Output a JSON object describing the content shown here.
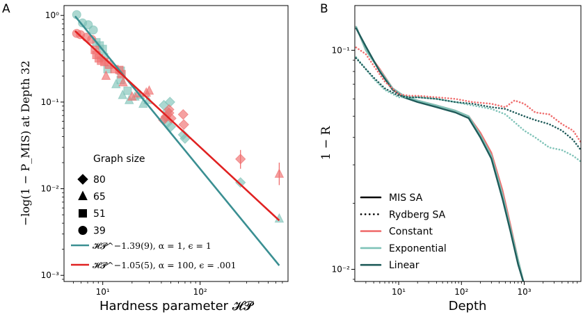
{
  "chart_data": [
    {
      "panel_label": "A",
      "type": "scatter",
      "xscale": "log",
      "yscale": "log",
      "xlim": [
        4,
        800
      ],
      "ylim": [
        0.00085,
        1.3
      ],
      "xlabel": "Hardness parameter 𝓗𝓟",
      "ylabel": "−log(1 − P_MIS) at Depth 32",
      "xticks": [
        {
          "v": 10,
          "label": "10¹"
        },
        {
          "v": 100,
          "label": "10²"
        }
      ],
      "yticks": [
        {
          "v": 1,
          "label": "10⁰"
        },
        {
          "v": 0.1,
          "label": "10⁻¹"
        },
        {
          "v": 0.01,
          "label": "10⁻²"
        },
        {
          "v": 0.001,
          "label": "10⁻³"
        }
      ],
      "legend_title": "Graph size",
      "size_legend": [
        {
          "marker": "diamond",
          "label": "80"
        },
        {
          "marker": "triangle",
          "label": "65"
        },
        {
          "marker": "square",
          "label": "51"
        },
        {
          "marker": "circle",
          "label": "39"
        }
      ],
      "fit_lines": [
        {
          "name": "𝓗𝓟^−1.39(9), α = 1, ϵ = 1",
          "color": "#3a8f92",
          "x": [
            5.2,
            650
          ],
          "y": [
            0.98,
            0.0013
          ]
        },
        {
          "name": "𝓗𝓟^−1.05(5), α = 100, ϵ = .001",
          "color": "#e02121",
          "x": [
            5.2,
            650
          ],
          "y": [
            0.66,
            0.0043
          ]
        }
      ],
      "colors": {
        "teal": "#7fc3b8",
        "red": "#ef6e6e"
      },
      "points": [
        {
          "s": "teal",
          "m": "circle",
          "x": 5.4,
          "y": 1.02
        },
        {
          "s": "teal",
          "m": "circle",
          "x": 6.2,
          "y": 0.82
        },
        {
          "s": "teal",
          "m": "circle",
          "x": 7.1,
          "y": 0.78
        },
        {
          "s": "teal",
          "m": "circle",
          "x": 8.0,
          "y": 0.68
        },
        {
          "s": "teal",
          "m": "square",
          "x": 8.6,
          "y": 0.49
        },
        {
          "s": "teal",
          "m": "square",
          "x": 9.3,
          "y": 0.45
        },
        {
          "s": "teal",
          "m": "square",
          "x": 10.0,
          "y": 0.41
        },
        {
          "s": "teal",
          "m": "square",
          "x": 10.3,
          "y": 0.33
        },
        {
          "s": "teal",
          "m": "square",
          "x": 11.2,
          "y": 0.24
        },
        {
          "s": "teal",
          "m": "square",
          "x": 15.3,
          "y": 0.23
        },
        {
          "s": "teal",
          "m": "square",
          "x": 15.3,
          "y": 0.18
        },
        {
          "s": "teal",
          "m": "square",
          "x": 18.0,
          "y": 0.135
        },
        {
          "s": "teal",
          "m": "triangle",
          "x": 13.7,
          "y": 0.16
        },
        {
          "s": "teal",
          "m": "triangle",
          "x": 16.0,
          "y": 0.12
        },
        {
          "s": "teal",
          "m": "triangle",
          "x": 18.7,
          "y": 0.105
        },
        {
          "s": "teal",
          "m": "triangle",
          "x": 21.4,
          "y": 0.115
        },
        {
          "s": "teal",
          "m": "triangle",
          "x": 24.4,
          "y": 0.12
        },
        {
          "s": "teal",
          "m": "triangle",
          "x": 26.0,
          "y": 0.095
        },
        {
          "s": "teal",
          "m": "triangle",
          "x": 29.2,
          "y": 0.105
        },
        {
          "s": "teal",
          "m": "diamond",
          "x": 42.5,
          "y": 0.092
        },
        {
          "s": "teal",
          "m": "diamond",
          "x": 46.0,
          "y": 0.078
        },
        {
          "s": "teal",
          "m": "diamond",
          "x": 49.0,
          "y": 0.1
        },
        {
          "s": "teal",
          "m": "diamond",
          "x": 44.0,
          "y": 0.065
        },
        {
          "s": "teal",
          "m": "diamond",
          "x": 46.0,
          "y": 0.057
        },
        {
          "s": "teal",
          "m": "diamond",
          "x": 50.0,
          "y": 0.052
        },
        {
          "s": "teal",
          "m": "diamond",
          "x": 67.0,
          "y": 0.042
        },
        {
          "s": "teal",
          "m": "diamond",
          "x": 70.0,
          "y": 0.038
        },
        {
          "s": "teal",
          "m": "diamond",
          "x": 260.0,
          "y": 0.0118
        },
        {
          "s": "teal",
          "m": "triangle",
          "x": 650.0,
          "y": 0.0045
        },
        {
          "s": "red",
          "m": "circle",
          "x": 5.4,
          "y": 0.62
        },
        {
          "s": "red",
          "m": "circle",
          "x": 5.9,
          "y": 0.6
        },
        {
          "s": "red",
          "m": "circle",
          "x": 6.8,
          "y": 0.56
        },
        {
          "s": "red",
          "m": "circle",
          "x": 7.7,
          "y": 0.53
        },
        {
          "s": "red",
          "m": "square",
          "x": 8.3,
          "y": 0.4
        },
        {
          "s": "red",
          "m": "square",
          "x": 8.6,
          "y": 0.35
        },
        {
          "s": "red",
          "m": "square",
          "x": 9.1,
          "y": 0.32
        },
        {
          "s": "red",
          "m": "square",
          "x": 9.6,
          "y": 0.3
        },
        {
          "s": "red",
          "m": "square",
          "x": 10.4,
          "y": 0.29
        },
        {
          "s": "red",
          "m": "square",
          "x": 11.6,
          "y": 0.27
        },
        {
          "s": "red",
          "m": "square",
          "x": 13.2,
          "y": 0.24
        },
        {
          "s": "red",
          "m": "square",
          "x": 14.8,
          "y": 0.235
        },
        {
          "s": "red",
          "m": "square",
          "x": 15.6,
          "y": 0.21
        },
        {
          "s": "red",
          "m": "triangle",
          "x": 10.8,
          "y": 0.2
        },
        {
          "s": "red",
          "m": "triangle",
          "x": 16.2,
          "y": 0.168
        },
        {
          "s": "red",
          "m": "triangle",
          "x": 20.0,
          "y": 0.115
        },
        {
          "s": "red",
          "m": "triangle",
          "x": 23.0,
          "y": 0.125
        },
        {
          "s": "red",
          "m": "triangle",
          "x": 28.0,
          "y": 0.128
        },
        {
          "s": "red",
          "m": "triangle",
          "x": 30.0,
          "y": 0.135
        },
        {
          "s": "red",
          "m": "diamond",
          "x": 42.0,
          "y": 0.062
        },
        {
          "s": "red",
          "m": "diamond",
          "x": 44.5,
          "y": 0.068
        },
        {
          "s": "red",
          "m": "diamond",
          "x": 48.0,
          "y": 0.075
        },
        {
          "s": "red",
          "m": "diamond",
          "x": 50.5,
          "y": 0.065
        },
        {
          "s": "red",
          "m": "diamond",
          "x": 48.0,
          "y": 0.082
        },
        {
          "s": "red",
          "m": "diamond",
          "x": 67.0,
          "y": 0.072
        },
        {
          "s": "red",
          "m": "diamond",
          "x": 68.0,
          "y": 0.055
        },
        {
          "s": "red",
          "m": "diamond",
          "x": 260.0,
          "y": 0.022,
          "err": [
            0.017,
            0.028
          ]
        },
        {
          "s": "red",
          "m": "triangle",
          "x": 650.0,
          "y": 0.0148,
          "err": [
            0.011,
            0.02
          ]
        }
      ]
    },
    {
      "panel_label": "B",
      "type": "line",
      "xscale": "log",
      "yscale": "log",
      "xlim": [
        2,
        8000
      ],
      "ylim": [
        0.0088,
        0.16
      ],
      "xlabel": "Depth",
      "ylabel": "1 − R",
      "xticks": [
        {
          "v": 10,
          "label": "10¹"
        },
        {
          "v": 100,
          "label": "10²"
        },
        {
          "v": 1000,
          "label": "10³"
        }
      ],
      "yticks": [
        {
          "v": 0.1,
          "label": "10⁻¹"
        },
        {
          "v": 0.01,
          "label": "10⁻²"
        }
      ],
      "legend": [
        {
          "label": "MIS SA",
          "color": "#000000",
          "style": "solid"
        },
        {
          "label": "Rydberg SA",
          "color": "#000000",
          "style": "dotted"
        },
        {
          "label": "Constant",
          "color": "#ef6e6e",
          "style": "solid"
        },
        {
          "label": "Exponential",
          "color": "#7fc3b8",
          "style": "solid"
        },
        {
          "label": "Linear",
          "color": "#1f5b5a",
          "style": "solid"
        }
      ],
      "series": [
        {
          "name": "MIS SA · Constant",
          "color": "#ef6e6e",
          "style": "solid",
          "x": [
            2.1,
            3,
            5,
            8,
            12,
            20,
            40,
            80,
            130,
            200,
            300,
            450,
            600,
            800,
            1000
          ],
          "y": [
            0.128,
            0.1,
            0.082,
            0.067,
            0.062,
            0.059,
            0.056,
            0.053,
            0.05,
            0.042,
            0.034,
            0.023,
            0.016,
            0.011,
            0.0085
          ]
        },
        {
          "name": "MIS SA · Exponential",
          "color": "#7fc3b8",
          "style": "solid",
          "x": [
            2.1,
            3,
            5,
            8,
            12,
            20,
            40,
            80,
            130,
            200,
            300,
            450,
            600,
            800,
            1000
          ],
          "y": [
            0.128,
            0.1,
            0.081,
            0.067,
            0.062,
            0.059,
            0.056,
            0.053,
            0.05,
            0.041,
            0.033,
            0.022,
            0.0155,
            0.011,
            0.0085
          ]
        },
        {
          "name": "MIS SA · Linear",
          "color": "#1f5b5a",
          "style": "solid",
          "x": [
            2.1,
            3,
            5,
            8,
            12,
            20,
            40,
            80,
            130,
            200,
            300,
            450,
            600,
            800,
            1000
          ],
          "y": [
            0.126,
            0.104,
            0.08,
            0.066,
            0.061,
            0.058,
            0.055,
            0.052,
            0.049,
            0.04,
            0.032,
            0.021,
            0.015,
            0.0105,
            0.0085
          ]
        },
        {
          "name": "Rydberg SA · Constant",
          "color": "#ef6e6e",
          "style": "dotted",
          "x": [
            2.1,
            3,
            4,
            6,
            10,
            15,
            20,
            40,
            80,
            150,
            300,
            500,
            700,
            1000,
            1500,
            2500,
            4000,
            6000,
            8000
          ],
          "y": [
            0.103,
            0.096,
            0.085,
            0.072,
            0.063,
            0.062,
            0.062,
            0.061,
            0.06,
            0.058,
            0.057,
            0.055,
            0.059,
            0.057,
            0.052,
            0.051,
            0.046,
            0.043,
            0.038
          ]
        },
        {
          "name": "Rydberg SA · Exponential",
          "color": "#7fc3b8",
          "style": "dotted",
          "x": [
            2.1,
            3,
            4,
            6,
            10,
            15,
            20,
            40,
            80,
            150,
            300,
            500,
            700,
            1000,
            1500,
            2500,
            4000,
            6000,
            8000
          ],
          "y": [
            0.093,
            0.082,
            0.074,
            0.066,
            0.061,
            0.061,
            0.061,
            0.06,
            0.058,
            0.056,
            0.054,
            0.051,
            0.047,
            0.043,
            0.04,
            0.036,
            0.035,
            0.033,
            0.031
          ]
        },
        {
          "name": "Rydberg SA · Linear",
          "color": "#1f5b5a",
          "style": "dotted",
          "x": [
            2.1,
            3,
            4,
            6,
            10,
            15,
            20,
            40,
            80,
            150,
            300,
            500,
            700,
            1000,
            1500,
            2500,
            4000,
            6000,
            8000
          ],
          "y": [
            0.092,
            0.082,
            0.075,
            0.067,
            0.062,
            0.061,
            0.061,
            0.06,
            0.058,
            0.057,
            0.055,
            0.054,
            0.052,
            0.05,
            0.048,
            0.046,
            0.043,
            0.039,
            0.035
          ]
        }
      ]
    }
  ]
}
